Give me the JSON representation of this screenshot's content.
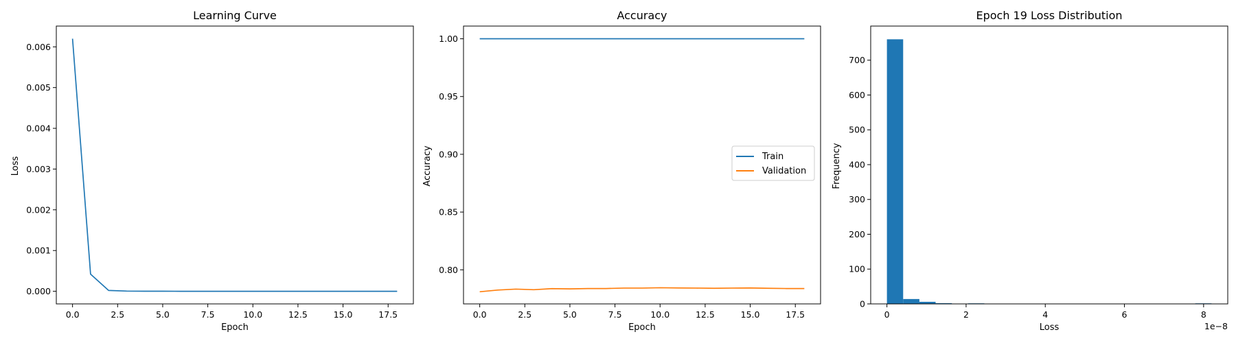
{
  "chart_data": [
    {
      "type": "line",
      "title": "Learning Curve",
      "xlabel": "Epoch",
      "ylabel": "Loss",
      "xlim": [
        -0.9,
        18.9
      ],
      "ylim": [
        -0.00031,
        0.00651
      ],
      "xticks": [
        0,
        2.5,
        5,
        7.5,
        10,
        12.5,
        15,
        17.5
      ],
      "xtick_labels": [
        "0.0",
        "2.5",
        "5.0",
        "7.5",
        "10.0",
        "12.5",
        "15.0",
        "17.5"
      ],
      "yticks": [
        0,
        0.001,
        0.002,
        0.003,
        0.004,
        0.005,
        0.006
      ],
      "ytick_labels": [
        "0.000",
        "0.001",
        "0.002",
        "0.003",
        "0.004",
        "0.005",
        "0.006"
      ],
      "grid": false,
      "series": [
        {
          "color": "#1f77b4",
          "x": [
            0,
            1,
            2,
            3,
            4,
            5,
            6,
            7,
            8,
            9,
            10,
            11,
            12,
            13,
            14,
            15,
            16,
            17,
            18
          ],
          "y": [
            0.0062,
            0.00042,
            2e-05,
            5e-06,
            2e-06,
            1e-06,
            0,
            0,
            0,
            0,
            0,
            0,
            0,
            0,
            0,
            0,
            0,
            0,
            0
          ]
        }
      ]
    },
    {
      "type": "line",
      "title": "Accuracy",
      "xlabel": "Epoch",
      "ylabel": "Accuracy",
      "xlim": [
        -0.9,
        18.9
      ],
      "ylim": [
        0.7705,
        1.011
      ],
      "xticks": [
        0,
        2.5,
        5,
        7.5,
        10,
        12.5,
        15,
        17.5
      ],
      "xtick_labels": [
        "0.0",
        "2.5",
        "5.0",
        "7.5",
        "10.0",
        "12.5",
        "15.0",
        "17.5"
      ],
      "yticks": [
        0.8,
        0.85,
        0.9,
        0.95,
        1.0
      ],
      "ytick_labels": [
        "0.80",
        "0.85",
        "0.90",
        "0.95",
        "1.00"
      ],
      "grid": false,
      "legend": "center-right",
      "series": [
        {
          "name": "Train",
          "color": "#1f77b4",
          "x": [
            0,
            1,
            2,
            3,
            4,
            5,
            6,
            7,
            8,
            9,
            10,
            11,
            12,
            13,
            14,
            15,
            16,
            17,
            18
          ],
          "y": [
            1,
            1,
            1,
            1,
            1,
            1,
            1,
            1,
            1,
            1,
            1,
            1,
            1,
            1,
            1,
            1,
            1,
            1,
            1
          ]
        },
        {
          "name": "Validation",
          "color": "#ff7f0e",
          "x": [
            0,
            1,
            2,
            3,
            4,
            5,
            6,
            7,
            8,
            9,
            10,
            11,
            12,
            13,
            14,
            15,
            16,
            17,
            18
          ],
          "y": [
            0.781,
            0.7825,
            0.7833,
            0.7828,
            0.7837,
            0.7835,
            0.7838,
            0.7838,
            0.7842,
            0.7842,
            0.7845,
            0.7843,
            0.7842,
            0.784,
            0.7842,
            0.7843,
            0.784,
            0.7838,
            0.7838
          ]
        }
      ]
    },
    {
      "type": "bar",
      "subtype": "histogram",
      "title": "Epoch 19 Loss Distribution",
      "xlabel": "Loss",
      "ylabel": "Frequency",
      "offset_text": "1e−8",
      "xlim": [
        -0.41,
        8.61
      ],
      "ylim": [
        0,
        798
      ],
      "xticks": [
        0,
        2,
        4,
        6,
        8
      ],
      "xtick_labels": [
        "0",
        "2",
        "4",
        "6",
        "8"
      ],
      "yticks": [
        0,
        100,
        200,
        300,
        400,
        500,
        600,
        700
      ],
      "ytick_labels": [
        "0",
        "100",
        "200",
        "300",
        "400",
        "500",
        "600",
        "700"
      ],
      "grid": false,
      "color": "#1f77b4",
      "bin_edges": [
        0,
        0.41,
        0.82,
        1.23,
        1.64,
        2.05,
        2.46,
        2.87,
        3.28,
        3.69,
        4.1,
        4.51,
        4.92,
        5.33,
        5.74,
        6.15,
        6.56,
        6.97,
        7.38,
        7.79,
        8.2
      ],
      "counts": [
        760,
        14,
        6,
        2,
        0,
        1,
        0,
        0,
        0,
        0,
        0,
        0,
        0,
        0,
        0,
        0,
        0,
        0,
        0,
        1
      ]
    }
  ]
}
